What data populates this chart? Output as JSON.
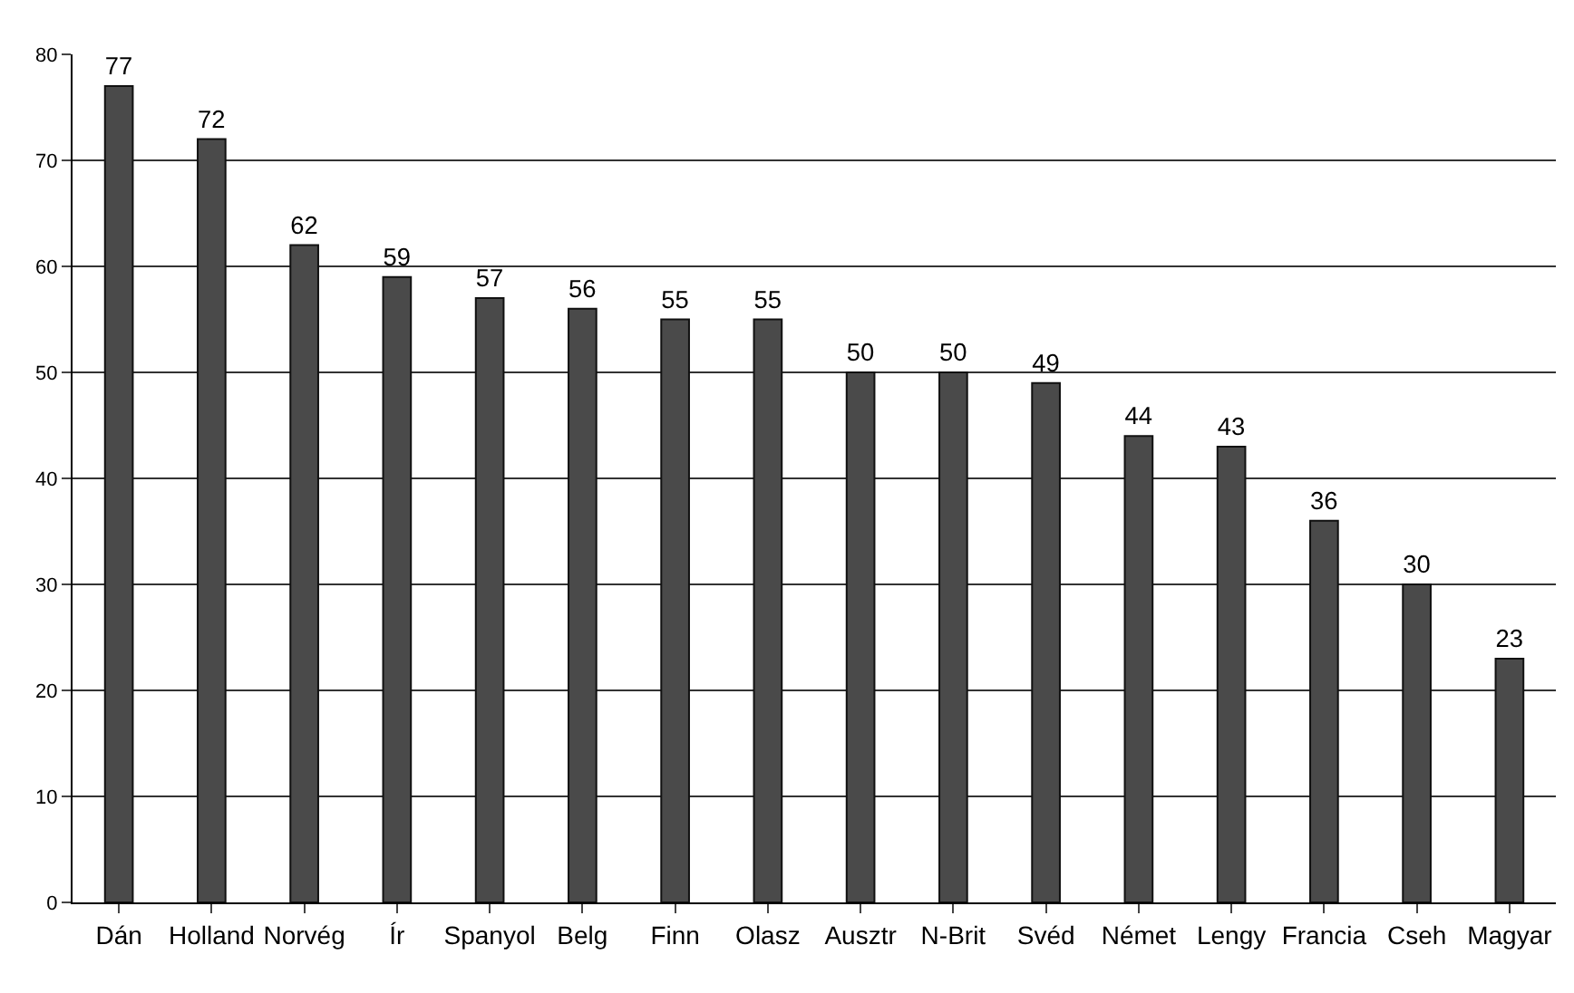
{
  "chart_data": {
    "type": "bar",
    "categories": [
      "Dán",
      "Holland",
      "Norvég",
      "Ír",
      "Spanyol",
      "Belg",
      "Finn",
      "Olasz",
      "Ausztr",
      "N-Brit",
      "Svéd",
      "Német",
      "Lengy",
      "Francia",
      "Cseh",
      "Magyar"
    ],
    "values": [
      77,
      72,
      62,
      59,
      57,
      56,
      55,
      55,
      50,
      50,
      49,
      44,
      43,
      36,
      30,
      23
    ],
    "color": "#4a4a4a",
    "ylim": [
      0,
      80
    ],
    "yticks": [
      0,
      10,
      20,
      30,
      40,
      50,
      60,
      70,
      80
    ],
    "grid": "y",
    "data_labels": true
  }
}
